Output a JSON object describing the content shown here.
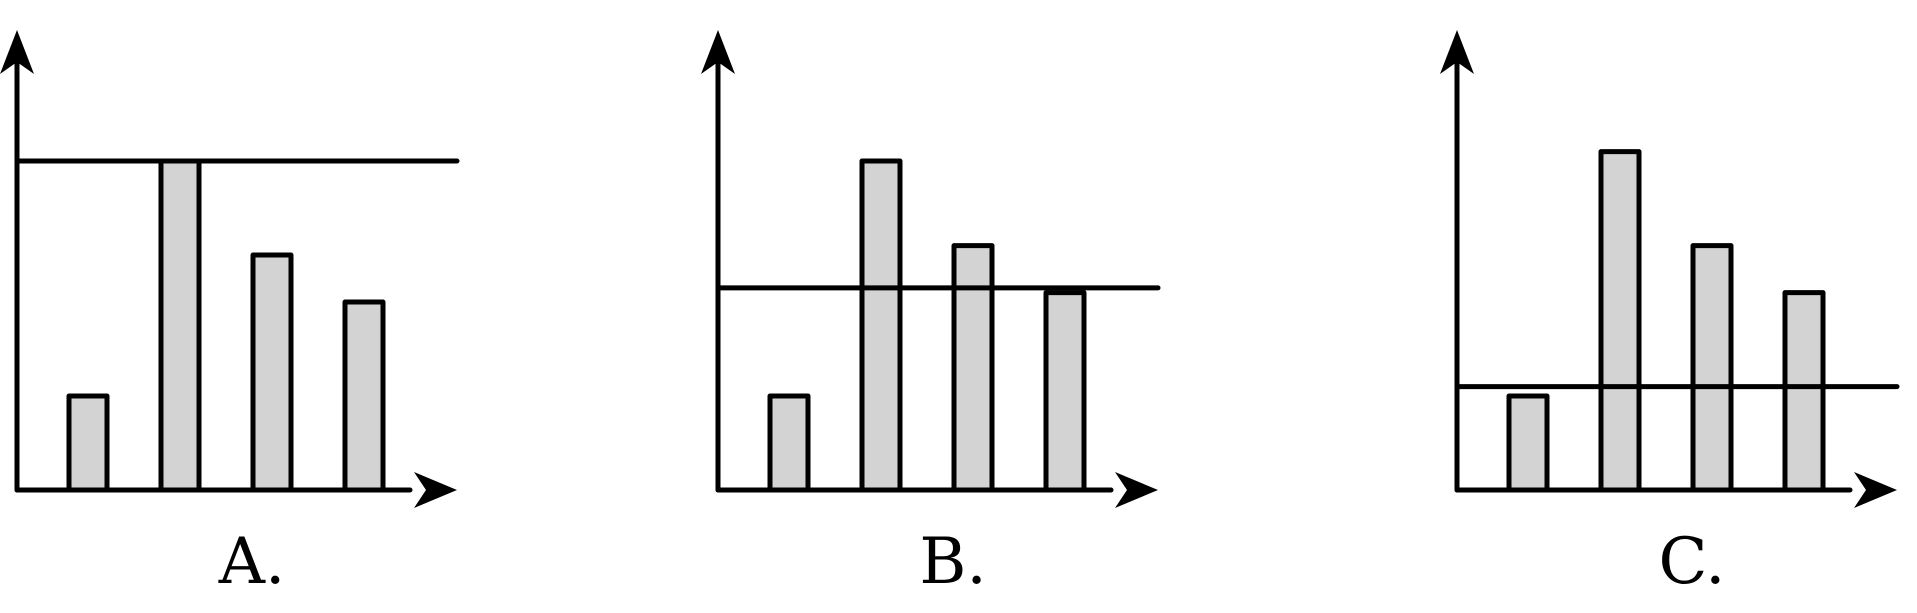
{
  "style": {
    "bar_fill": "#d3d3d3",
    "stroke": "#000000"
  },
  "chart_data": [
    {
      "type": "bar",
      "label": "A.",
      "values": [
        1,
        3.5,
        2.5,
        2
      ],
      "reference_line": 3.5,
      "ylim": [
        0,
        4.5
      ]
    },
    {
      "type": "bar",
      "label": "B.",
      "values": [
        1,
        3.5,
        2.6,
        2.1
      ],
      "reference_line": 2.15,
      "ylim": [
        0,
        4.5
      ]
    },
    {
      "type": "bar",
      "label": "C.",
      "values": [
        1,
        3.6,
        2.6,
        2.1
      ],
      "reference_line": 1.1,
      "ylim": [
        0,
        4.5
      ]
    }
  ]
}
